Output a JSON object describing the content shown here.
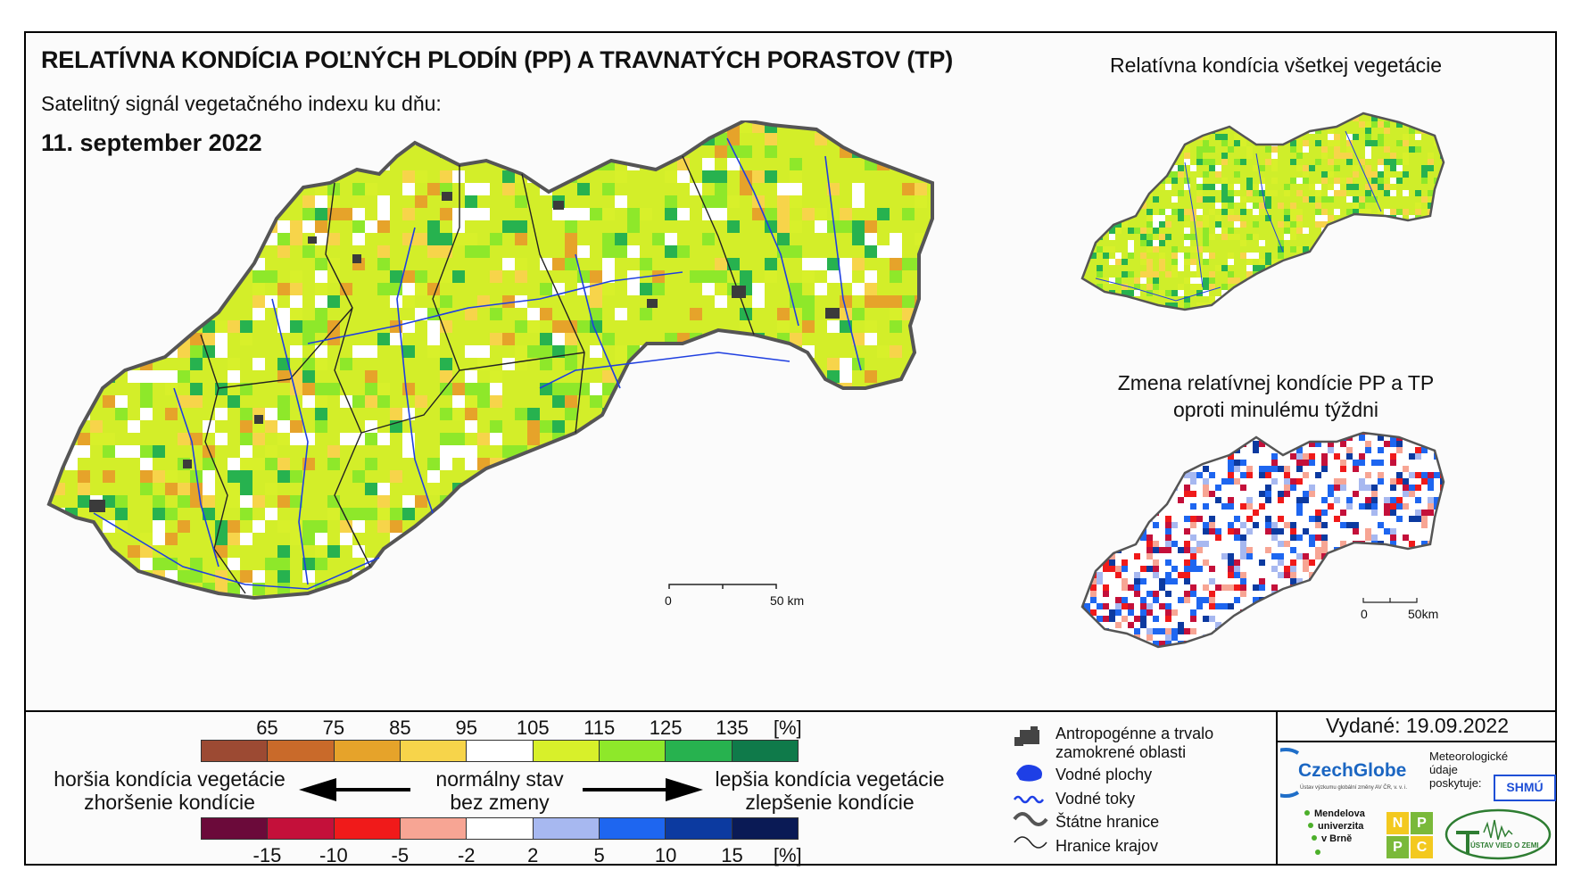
{
  "header": {
    "title": "RELATÍVNA KONDÍCIA POĽNÝCH PLODÍN (PP) A TRAVNATÝCH PORASTOV (TP)",
    "subtitle": "Satelitný signál vegetačného indexu ku dňu:",
    "date": "11. september 2022"
  },
  "insets": {
    "vegetation_title": "Relatívna kondícia všetkej vegetácie",
    "change_title_line1": "Zmena relatívnej kondície PP a TP",
    "change_title_line2": "oproti minulému týždni"
  },
  "scalebars": {
    "main": {
      "start": "0",
      "end": "50 km"
    },
    "inset": {
      "start": "0",
      "end": "50km"
    }
  },
  "legend": {
    "condition_ticks": [
      "65",
      "75",
      "85",
      "95",
      "105",
      "115",
      "125",
      "135",
      "[%]"
    ],
    "condition_colors": [
      "#9c4a33",
      "#c96a2a",
      "#e6a32a",
      "#f7d44a",
      "#ffffff",
      "#d8f02a",
      "#8ee82a",
      "#27b24f",
      "#0f7a4a"
    ],
    "change_ticks": [
      "-15",
      "-10",
      "-5",
      "-2",
      "2",
      "5",
      "10",
      "15",
      "[%]"
    ],
    "change_colors": [
      "#6b0a3a",
      "#c4103a",
      "#f01a1a",
      "#f7a594",
      "#ffffff",
      "#a7b8f0",
      "#1e66f0",
      "#0c3aa0",
      "#0a1a55"
    ],
    "worse_line1": "horšia kondícia vegetácie",
    "worse_line2": "zhoršenie kondície",
    "normal_line1": "normálny stav",
    "normal_line2": "bez zmeny",
    "better_line1": "lepšia kondícia vegetácie",
    "better_line2": "zlepšenie kondície"
  },
  "map_legend": {
    "anthropogenic_line1": "Antropogénne a trvalo",
    "anthropogenic_line2": "zamokrené oblasti",
    "water_bodies": "Vodné plochy",
    "rivers": "Vodné toky",
    "state_borders": "Štátne hranice",
    "region_borders": "Hranice krajov"
  },
  "issued": "Vydané: 19.09.2022",
  "logos": {
    "czechglobe": "CzechGlobe",
    "czechglobe_sub": "Ústav výzkumu globální změny AV ČR, v. v. i.",
    "meteo_line1": "Meteorologické",
    "meteo_line2": "údaje",
    "meteo_line3": "poskytuje:",
    "shmu": "SHMÚ",
    "mendel_line1": "Mendelova",
    "mendel_line2": "univerzita",
    "mendel_line3": "v Brně",
    "nppc": [
      "N",
      "P",
      "P",
      "C"
    ],
    "uvz": "ÚSTAV VIED O ZEMI"
  }
}
